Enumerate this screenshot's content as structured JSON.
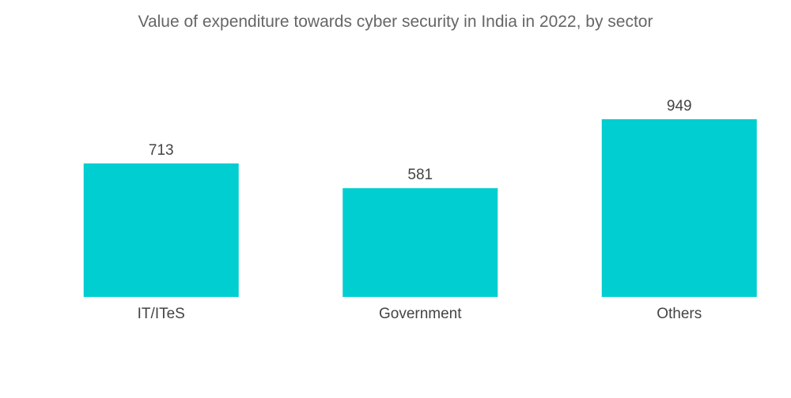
{
  "chart_data": {
    "type": "bar",
    "title": "Value of expenditure towards cyber security in India in 2022, by sector",
    "categories": [
      "IT/ITeS",
      "Government",
      "Others"
    ],
    "values": [
      713,
      581,
      949
    ],
    "ylim": [
      0,
      949
    ],
    "grid": false,
    "legend": "none",
    "bar_color": "#00CED1"
  }
}
